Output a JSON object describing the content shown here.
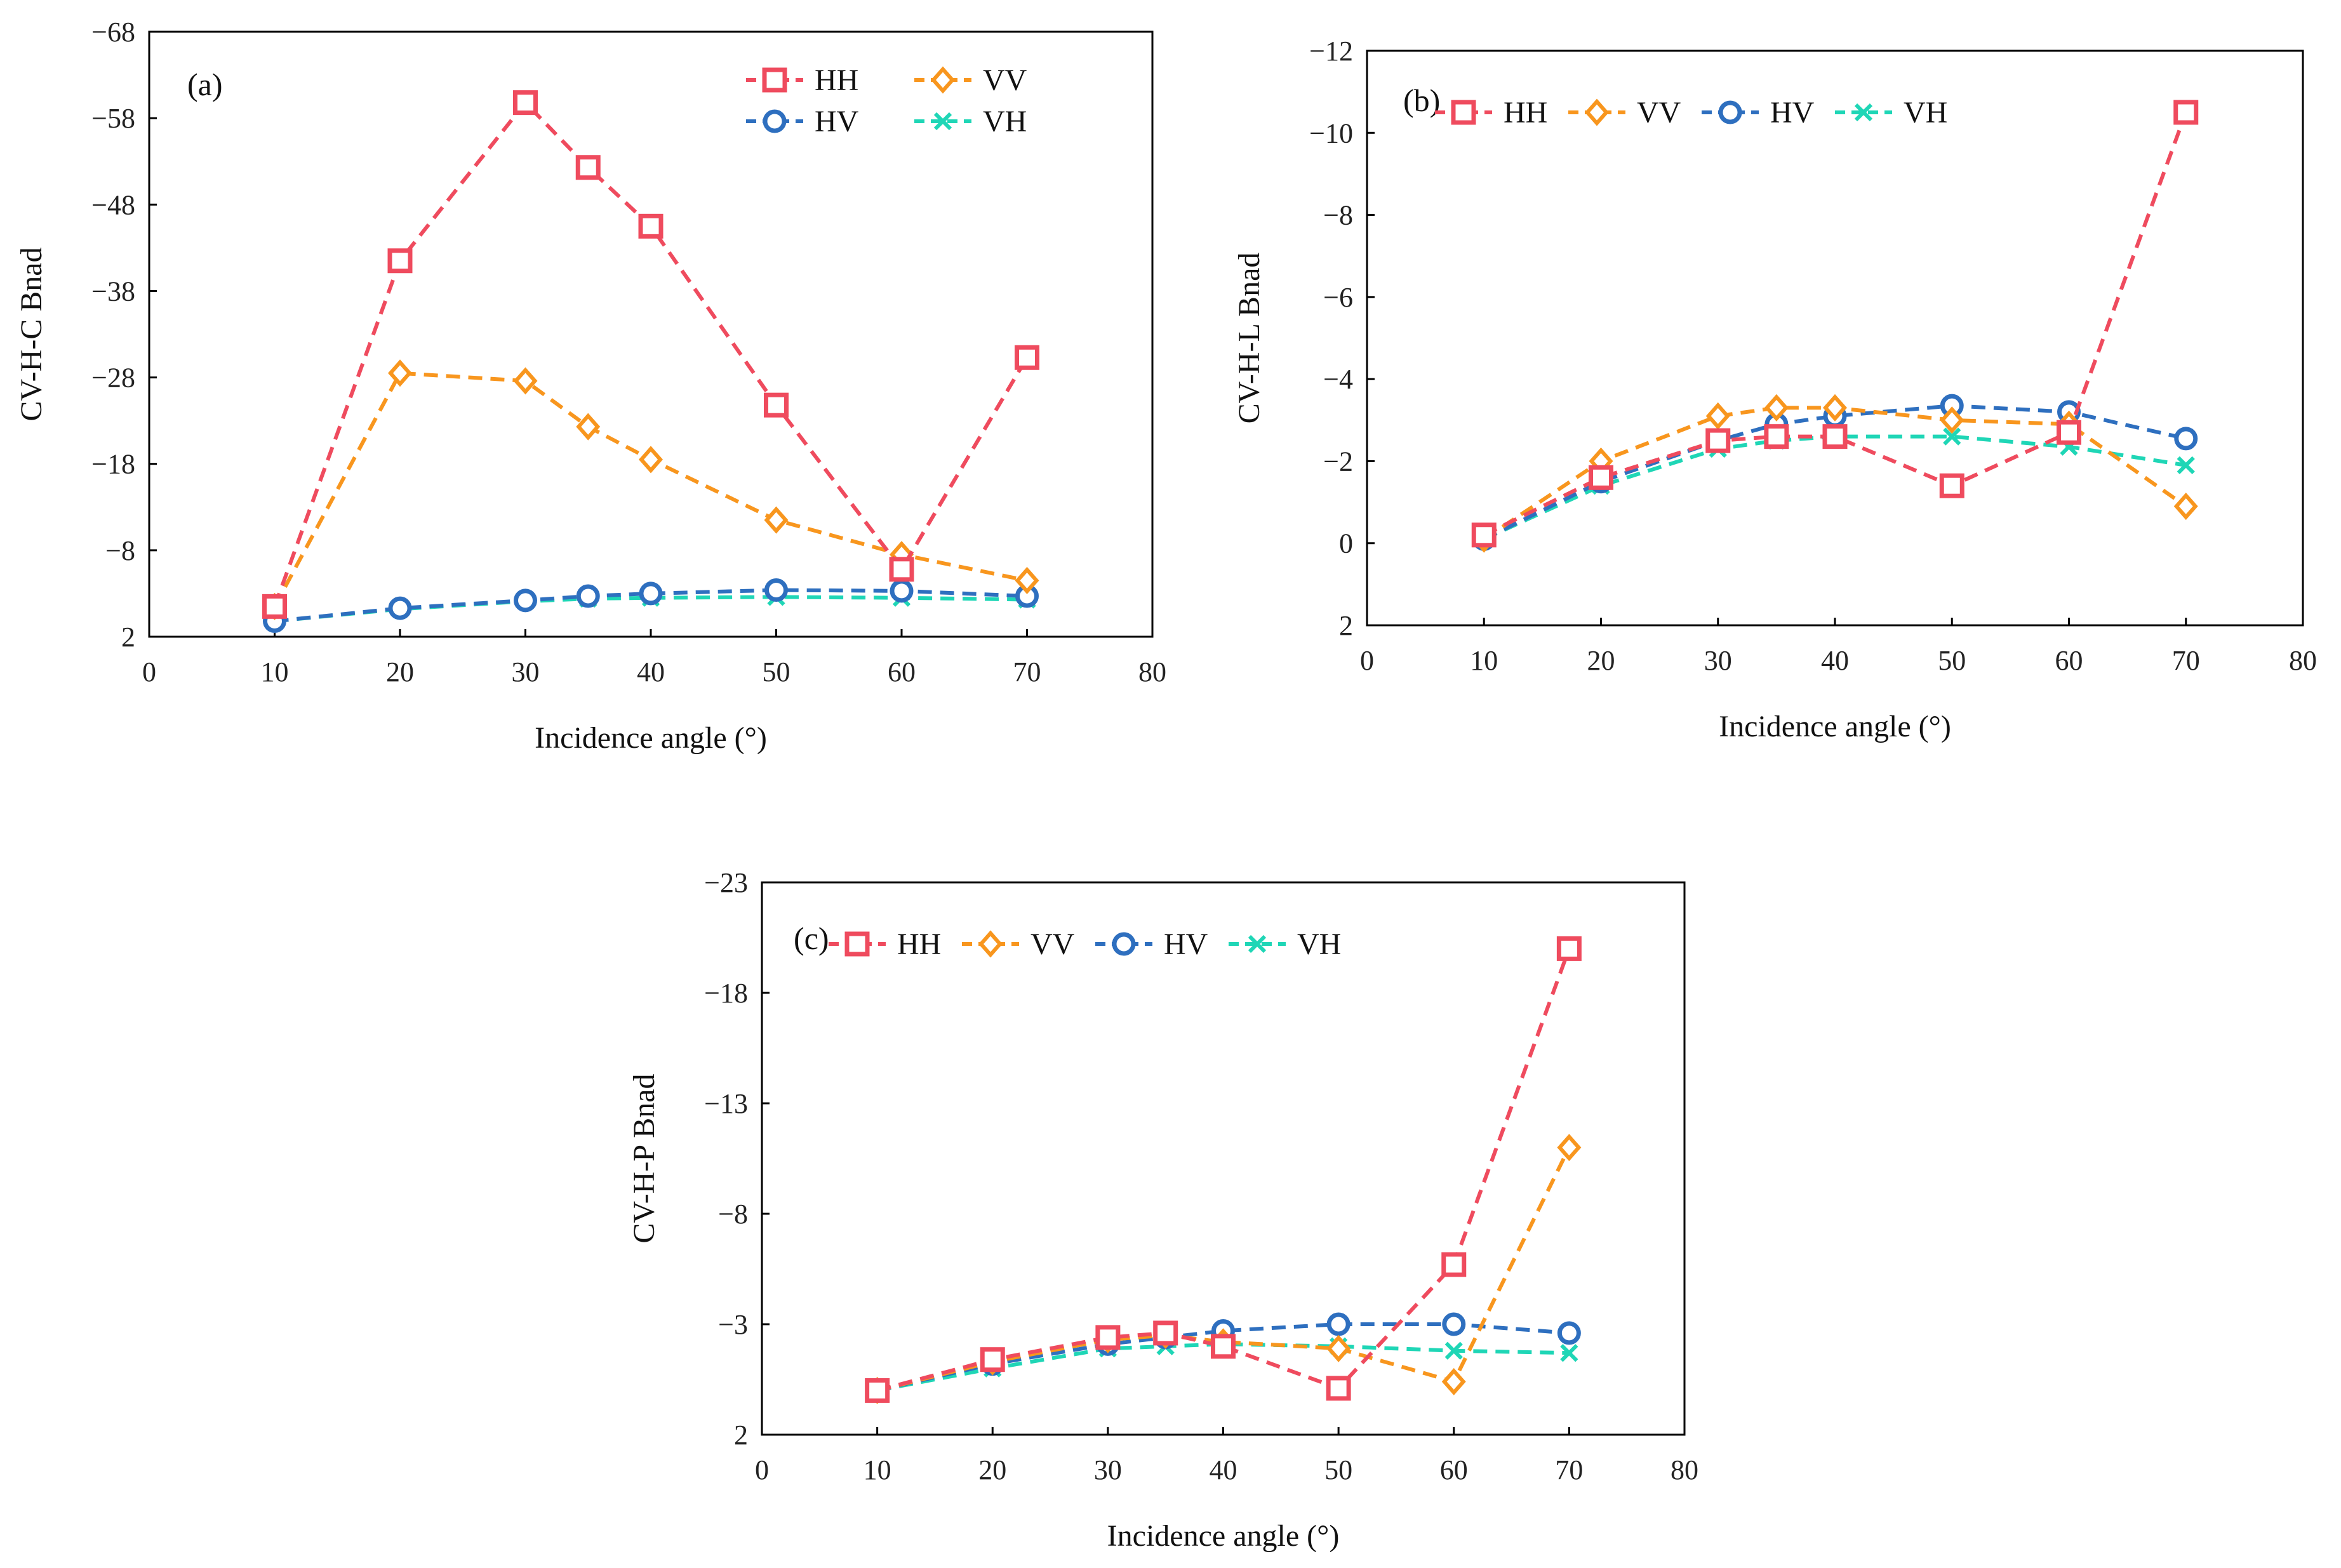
{
  "figure": {
    "series_colors": {
      "HH": "#EF4B5E",
      "VV": "#F8961E",
      "HV": "#2E6FBF",
      "VH": "#1FD6B6"
    },
    "series_markers": {
      "HH": "square",
      "VV": "diamond",
      "HV": "circle",
      "VH": "cross"
    }
  },
  "chart_data": [
    {
      "id": "a",
      "type": "line",
      "panel_label": "(a)",
      "title": "",
      "xlabel": "Incidence angle (°)",
      "ylabel": "CV-H-C Bnad",
      "xlim": [
        0,
        80
      ],
      "xticks": [
        0,
        10,
        20,
        30,
        40,
        50,
        60,
        70,
        80
      ],
      "ylim": [
        2,
        -68
      ],
      "yticks": [
        -68,
        -58,
        -48,
        -38,
        -28,
        -18,
        -8,
        2
      ],
      "ytick_labels": [
        "−68",
        "−58",
        "−48",
        "−38",
        "−28",
        "−18",
        "−8",
        "2"
      ],
      "legend_layout": "grid-2x2",
      "legend_order": [
        "HH",
        "VV",
        "HV",
        "VH"
      ],
      "x": [
        10,
        20,
        30,
        35,
        40,
        50,
        60,
        70
      ],
      "series": [
        {
          "name": "HH",
          "values": [
            -1.5,
            -41.5,
            -59.8,
            -52.3,
            -45.5,
            -24.8,
            -5.8,
            -30.3
          ]
        },
        {
          "name": "VV",
          "values": [
            -1.5,
            -28.5,
            -27.6,
            -22.3,
            -18.5,
            -11.5,
            -7.5,
            -4.5
          ]
        },
        {
          "name": "HV",
          "values": [
            0.2,
            -1.3,
            -2.2,
            -2.7,
            -3.0,
            -3.4,
            -3.3,
            -2.7
          ]
        },
        {
          "name": "VH",
          "values": [
            0.2,
            -1.2,
            -2.1,
            -2.4,
            -2.5,
            -2.6,
            -2.5,
            -2.3
          ]
        }
      ]
    },
    {
      "id": "b",
      "type": "line",
      "panel_label": "(b)",
      "title": "",
      "xlabel": "Incidence angle (°)",
      "ylabel": "CV-H-L Bnad",
      "xlim": [
        0,
        80
      ],
      "xticks": [
        0,
        10,
        20,
        30,
        40,
        50,
        60,
        70,
        80
      ],
      "ylim": [
        2,
        -12
      ],
      "yticks": [
        -12,
        -10,
        -8,
        -6,
        -4,
        -2,
        0,
        2
      ],
      "ytick_labels": [
        "−12",
        "−10",
        "−8",
        "−6",
        "−4",
        "−2",
        "0",
        "2"
      ],
      "legend_layout": "row",
      "legend_order": [
        "HH",
        "VV",
        "HV",
        "VH"
      ],
      "x": [
        10,
        20,
        30,
        35,
        40,
        50,
        60,
        70
      ],
      "series": [
        {
          "name": "HH",
          "values": [
            -0.2,
            -1.6,
            -2.5,
            -2.6,
            -2.6,
            -1.4,
            -2.7,
            -10.5
          ]
        },
        {
          "name": "VV",
          "values": [
            -0.1,
            -2.0,
            -3.1,
            -3.3,
            -3.3,
            -3.0,
            -2.9,
            -0.9
          ]
        },
        {
          "name": "HV",
          "values": [
            -0.1,
            -1.5,
            -2.5,
            -2.9,
            -3.1,
            -3.35,
            -3.2,
            -2.55
          ]
        },
        {
          "name": "VH",
          "values": [
            -0.1,
            -1.4,
            -2.3,
            -2.5,
            -2.6,
            -2.6,
            -2.35,
            -1.9
          ]
        }
      ]
    },
    {
      "id": "c",
      "type": "line",
      "panel_label": "(c)",
      "title": "",
      "xlabel": "Incidence angle (°)",
      "ylabel": "CV-H-P Bnad",
      "xlim": [
        0,
        80
      ],
      "xticks": [
        0,
        10,
        20,
        30,
        40,
        50,
        60,
        70,
        80
      ],
      "ylim": [
        2,
        -23
      ],
      "yticks": [
        -23,
        -18,
        -13,
        -8,
        -3,
        2
      ],
      "ytick_labels": [
        "−23",
        "−18",
        "−13",
        "−8",
        "−3",
        "2"
      ],
      "legend_layout": "row",
      "legend_order": [
        "HH",
        "VV",
        "HV",
        "VH"
      ],
      "x": [
        10,
        20,
        30,
        35,
        40,
        50,
        60,
        70
      ],
      "series": [
        {
          "name": "HH",
          "values": [
            0.0,
            -1.4,
            -2.4,
            -2.6,
            -2.0,
            -0.1,
            -5.7,
            -20.0
          ]
        },
        {
          "name": "VV",
          "values": [
            0.0,
            -1.3,
            -2.3,
            -2.5,
            -2.2,
            -1.9,
            -0.4,
            -11.0
          ]
        },
        {
          "name": "HV",
          "values": [
            0.0,
            -1.2,
            -2.1,
            -2.4,
            -2.7,
            -3.0,
            -3.0,
            -2.6
          ]
        },
        {
          "name": "VH",
          "values": [
            0.0,
            -1.0,
            -1.9,
            -2.0,
            -2.1,
            -2.0,
            -1.8,
            -1.7
          ]
        }
      ]
    }
  ]
}
